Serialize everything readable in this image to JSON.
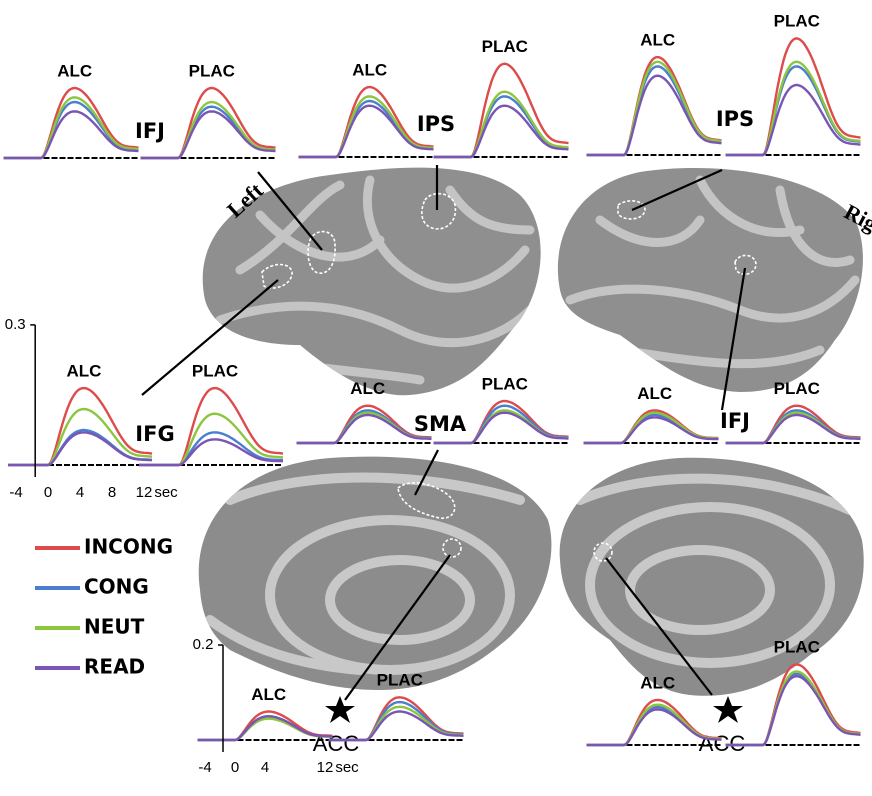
{
  "figure": {
    "side_labels": [
      "Left",
      "Right"
    ],
    "regions": [
      "IFJ",
      "IPS",
      "IPS",
      "IFG",
      "SMA",
      "IFJ",
      "ACC",
      "ACC"
    ],
    "conditions": [
      {
        "name": "INCONG",
        "color": "#dd4b4b"
      },
      {
        "name": "CONG",
        "color": "#4a7fd0"
      },
      {
        "name": "NEUT",
        "color": "#8cc63f"
      },
      {
        "name": "READ",
        "color": "#7a55b5"
      }
    ],
    "panels": [
      {
        "label": "ALC",
        "peaks": [
          0.15,
          0.12,
          0.13,
          0.1
        ]
      },
      {
        "label": "PLAC",
        "peaks": [
          0.15,
          0.11,
          0.12,
          0.1
        ]
      },
      {
        "label": "ALC",
        "peaks": [
          0.15,
          0.12,
          0.13,
          0.11
        ]
      },
      {
        "label": "PLAC",
        "peaks": [
          0.2,
          0.13,
          0.14,
          0.11
        ]
      },
      {
        "label": "ALC",
        "peaks": [
          0.21,
          0.19,
          0.2,
          0.17
        ]
      },
      {
        "label": "PLAC",
        "peaks": [
          0.25,
          0.19,
          0.2,
          0.15
        ]
      },
      {
        "label": "ALC",
        "peaks": [
          0.165,
          0.075,
          0.12,
          0.07
        ]
      },
      {
        "label": "PLAC",
        "peaks": [
          0.165,
          0.07,
          0.11,
          0.055
        ]
      },
      {
        "label": "ALC",
        "peaks": [
          0.08,
          0.07,
          0.065,
          0.06
        ]
      },
      {
        "label": "PLAC",
        "peaks": [
          0.09,
          0.08,
          0.07,
          0.065
        ]
      },
      {
        "label": "ALC",
        "peaks": [
          0.07,
          0.06,
          0.065,
          0.055
        ]
      },
      {
        "label": "PLAC",
        "peaks": [
          0.08,
          0.07,
          0.065,
          0.06
        ]
      },
      {
        "label": "ALC",
        "peaks": [
          0.06,
          0.05,
          0.045,
          0.05
        ]
      },
      {
        "label": "PLAC",
        "peaks": [
          0.09,
          0.08,
          0.07,
          0.06
        ]
      },
      {
        "label": "ALC",
        "peaks": [
          0.095,
          0.08,
          0.085,
          0.075
        ]
      },
      {
        "label": "PLAC",
        "peaks": [
          0.17,
          0.15,
          0.155,
          0.145
        ]
      }
    ],
    "axes": [
      {
        "ymax": 0.3,
        "xticks": [
          -4,
          0,
          4,
          8,
          12
        ],
        "unit": "sec"
      },
      {
        "ymax": 0.2,
        "xticks": [
          -4,
          0,
          4,
          12
        ],
        "unit": "sec"
      }
    ]
  }
}
